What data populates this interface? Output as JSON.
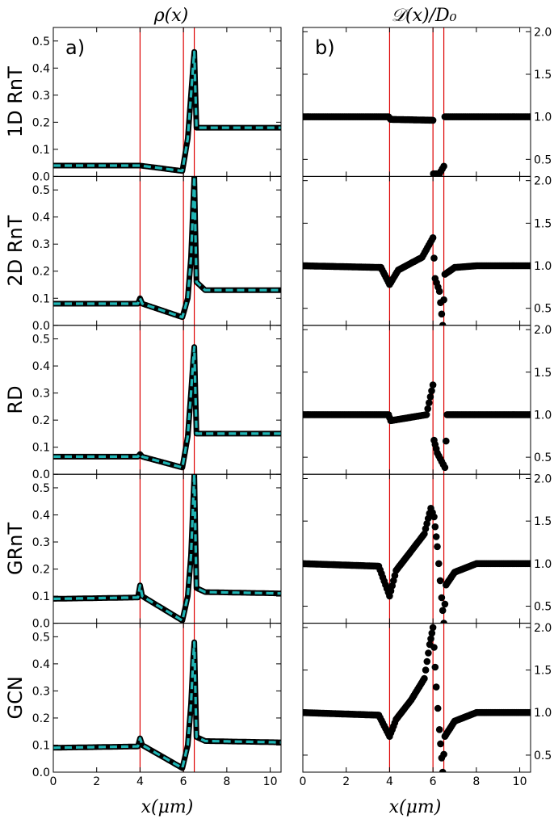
{
  "figure": {
    "left_title": "ρ(x)",
    "right_title": "𝒟(x)/D₀",
    "panel_a_label": "a)",
    "panel_b_label": "b)",
    "xlabel": "x(μm)"
  },
  "colors": {
    "data_line": "#000000",
    "fit_line": "#1fb5b5",
    "marker_lines": "#dd0000"
  },
  "chart_data": [
    {
      "type": "line",
      "title": "ρ(x)",
      "panel": "a)",
      "xlabel": "x(μm)",
      "xlim": [
        0,
        10.5
      ],
      "ylim": [
        0.0,
        0.55
      ],
      "x_ticks": [
        0,
        2,
        4,
        6,
        8,
        10
      ],
      "y_ticks": [
        0.0,
        0.1,
        0.2,
        0.3,
        0.4,
        0.5
      ],
      "x_tick_labels": [
        "0",
        "2",
        "4",
        "6",
        "8",
        "10"
      ],
      "y_tick_labels": [
        "0.0",
        "0.1",
        "0.2",
        "0.3",
        "0.4",
        "0.5"
      ],
      "vertical_lines": [
        4.0,
        6.0,
        6.5
      ],
      "rows": [
        {
          "label": "1D RnT",
          "x": [
            0,
            4.0,
            5.95,
            6.2,
            6.35,
            6.45,
            6.5,
            6.6,
            10.5
          ],
          "y": [
            0.04,
            0.04,
            0.02,
            0.14,
            0.3,
            0.41,
            0.46,
            0.18,
            0.18
          ]
        },
        {
          "label": "2D RnT",
          "x": [
            0,
            3.9,
            4.0,
            4.1,
            5.95,
            6.2,
            6.35,
            6.45,
            6.5,
            6.6,
            7.0,
            10.5
          ],
          "y": [
            0.08,
            0.08,
            0.1,
            0.08,
            0.03,
            0.1,
            0.25,
            0.45,
            0.55,
            0.16,
            0.13,
            0.13
          ]
        },
        {
          "label": "RD",
          "x": [
            0,
            3.9,
            4.0,
            4.1,
            5.95,
            6.2,
            6.35,
            6.45,
            6.5,
            6.6,
            10.5
          ],
          "y": [
            0.065,
            0.065,
            0.075,
            0.065,
            0.025,
            0.14,
            0.3,
            0.42,
            0.47,
            0.15,
            0.15
          ]
        },
        {
          "label": "GRnT",
          "x": [
            0,
            3.9,
            4.0,
            4.1,
            5.95,
            6.2,
            6.35,
            6.45,
            6.5,
            6.6,
            7.0,
            10.5
          ],
          "y": [
            0.09,
            0.095,
            0.14,
            0.1,
            0.01,
            0.1,
            0.25,
            0.45,
            0.55,
            0.13,
            0.115,
            0.11
          ]
        },
        {
          "label": "GCN",
          "x": [
            0,
            3.9,
            4.0,
            4.1,
            5.95,
            6.2,
            6.35,
            6.45,
            6.5,
            6.6,
            7.0,
            10.5
          ],
          "y": [
            0.09,
            0.095,
            0.125,
            0.1,
            0.015,
            0.1,
            0.25,
            0.42,
            0.48,
            0.13,
            0.115,
            0.11
          ]
        }
      ]
    },
    {
      "type": "scatter",
      "title": "𝒟(x)/D₀",
      "panel": "b)",
      "xlabel": "x(μm)",
      "xlim": [
        0,
        10.5
      ],
      "ylim": [
        0.3,
        2.05
      ],
      "x_ticks": [
        0,
        2,
        4,
        6,
        8,
        10
      ],
      "y_ticks": [
        0.5,
        1.0,
        1.5,
        2.0
      ],
      "x_tick_labels": [
        "0",
        "2",
        "4",
        "6",
        "8",
        "10"
      ],
      "y_tick_labels": [
        "0.5",
        "1.0",
        "1.5",
        "2.0"
      ],
      "vertical_lines": [
        4.0,
        6.0,
        6.5
      ],
      "rows": [
        {
          "label": "1D RnT",
          "x": [
            0,
            3.95,
            4.05,
            6.0,
            6.02,
            6.1,
            6.3,
            6.5,
            6.55,
            10.5
          ],
          "y": [
            1.0,
            1.0,
            0.97,
            0.96,
            0.33,
            0.33,
            0.33,
            0.42,
            1.0,
            1.0
          ]
        },
        {
          "label": "2D RnT",
          "x": [
            0,
            3.6,
            4.0,
            4.4,
            5.5,
            6.0,
            6.1,
            6.3,
            6.45,
            6.55,
            7.0,
            8.0,
            10.5
          ],
          "y": [
            1.0,
            0.98,
            0.78,
            0.95,
            1.1,
            1.33,
            0.85,
            0.7,
            0.3,
            0.9,
            0.98,
            1.0,
            1.0
          ]
        },
        {
          "label": "RD",
          "x": [
            0,
            3.95,
            4.05,
            5.7,
            6.0,
            6.05,
            6.2,
            6.4,
            6.55,
            6.65,
            10.5
          ],
          "y": [
            1.0,
            1.0,
            0.93,
            1.0,
            1.35,
            0.7,
            0.55,
            0.45,
            0.38,
            1.0,
            1.0
          ]
        },
        {
          "label": "GRnT",
          "x": [
            0,
            3.5,
            4.0,
            4.3,
            5.0,
            5.6,
            5.9,
            6.05,
            6.2,
            6.4,
            6.5,
            6.6,
            7.0,
            8.0,
            10.5
          ],
          "y": [
            1.0,
            0.97,
            0.62,
            0.92,
            1.15,
            1.35,
            1.65,
            1.55,
            1.2,
            0.6,
            0.3,
            0.75,
            0.9,
            1.0,
            1.0
          ]
        },
        {
          "label": "GCN",
          "x": [
            0,
            3.5,
            4.0,
            4.3,
            5.0,
            5.6,
            5.85,
            6.0,
            6.15,
            6.3,
            6.45,
            6.55,
            7.0,
            8.0,
            10.5
          ],
          "y": [
            1.0,
            0.97,
            0.72,
            0.92,
            1.15,
            1.4,
            1.8,
            2.0,
            1.3,
            0.8,
            0.3,
            0.72,
            0.9,
            1.0,
            1.0
          ]
        }
      ]
    }
  ]
}
